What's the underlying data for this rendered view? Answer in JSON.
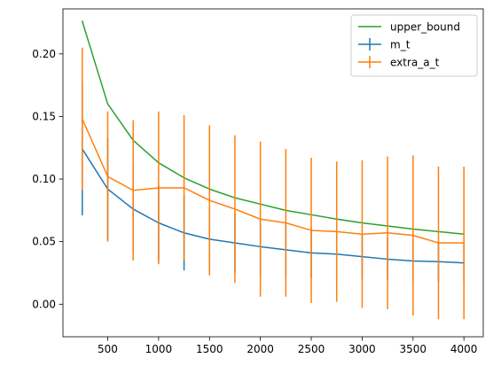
{
  "chart_data": {
    "type": "line",
    "x": [
      250,
      500,
      750,
      1000,
      1250,
      1500,
      1750,
      2000,
      2250,
      2500,
      2750,
      3000,
      3250,
      3500,
      3750,
      4000
    ],
    "xticks": [
      500,
      1000,
      1500,
      2000,
      2500,
      3000,
      3500,
      4000
    ],
    "xlim": [
      60,
      4190
    ],
    "ylim": [
      -0.026,
      0.236
    ],
    "yticks": [
      0.0,
      0.05,
      0.1,
      0.15,
      0.2
    ],
    "ytick_labels": [
      "0.00",
      "0.05",
      "0.10",
      "0.15",
      "0.20"
    ],
    "legend_position": "top-right",
    "series": [
      {
        "name": "upper_bound",
        "color": "#2ca02c",
        "errorbars": false,
        "values": [
          0.226,
          0.16,
          0.131,
          0.113,
          0.101,
          0.092,
          0.085,
          0.08,
          0.075,
          0.0715,
          0.068,
          0.065,
          0.0625,
          0.06,
          0.058,
          0.056
        ]
      },
      {
        "name": "m_t",
        "color": "#1f77b4",
        "errorbars": true,
        "values": [
          0.124,
          0.092,
          0.076,
          0.065,
          0.057,
          0.052,
          0.049,
          0.046,
          0.0435,
          0.041,
          0.04,
          0.038,
          0.036,
          0.0345,
          0.034,
          0.033
        ],
        "errors": [
          0.053,
          0.041,
          0.035,
          0.03,
          0.03,
          0.026,
          0.024,
          0.022,
          0.021,
          0.02,
          0.019,
          0.018,
          0.017,
          0.0165,
          0.016,
          0.0155
        ]
      },
      {
        "name": "extra_a_t",
        "color": "#ff7f0e",
        "errorbars": true,
        "values": [
          0.148,
          0.102,
          0.091,
          0.093,
          0.093,
          0.083,
          0.076,
          0.068,
          0.065,
          0.059,
          0.058,
          0.056,
          0.057,
          0.055,
          0.049,
          0.049
        ],
        "errors": [
          0.057,
          0.052,
          0.056,
          0.061,
          0.058,
          0.06,
          0.059,
          0.062,
          0.059,
          0.058,
          0.056,
          0.059,
          0.061,
          0.064,
          0.061,
          0.061
        ]
      }
    ]
  }
}
